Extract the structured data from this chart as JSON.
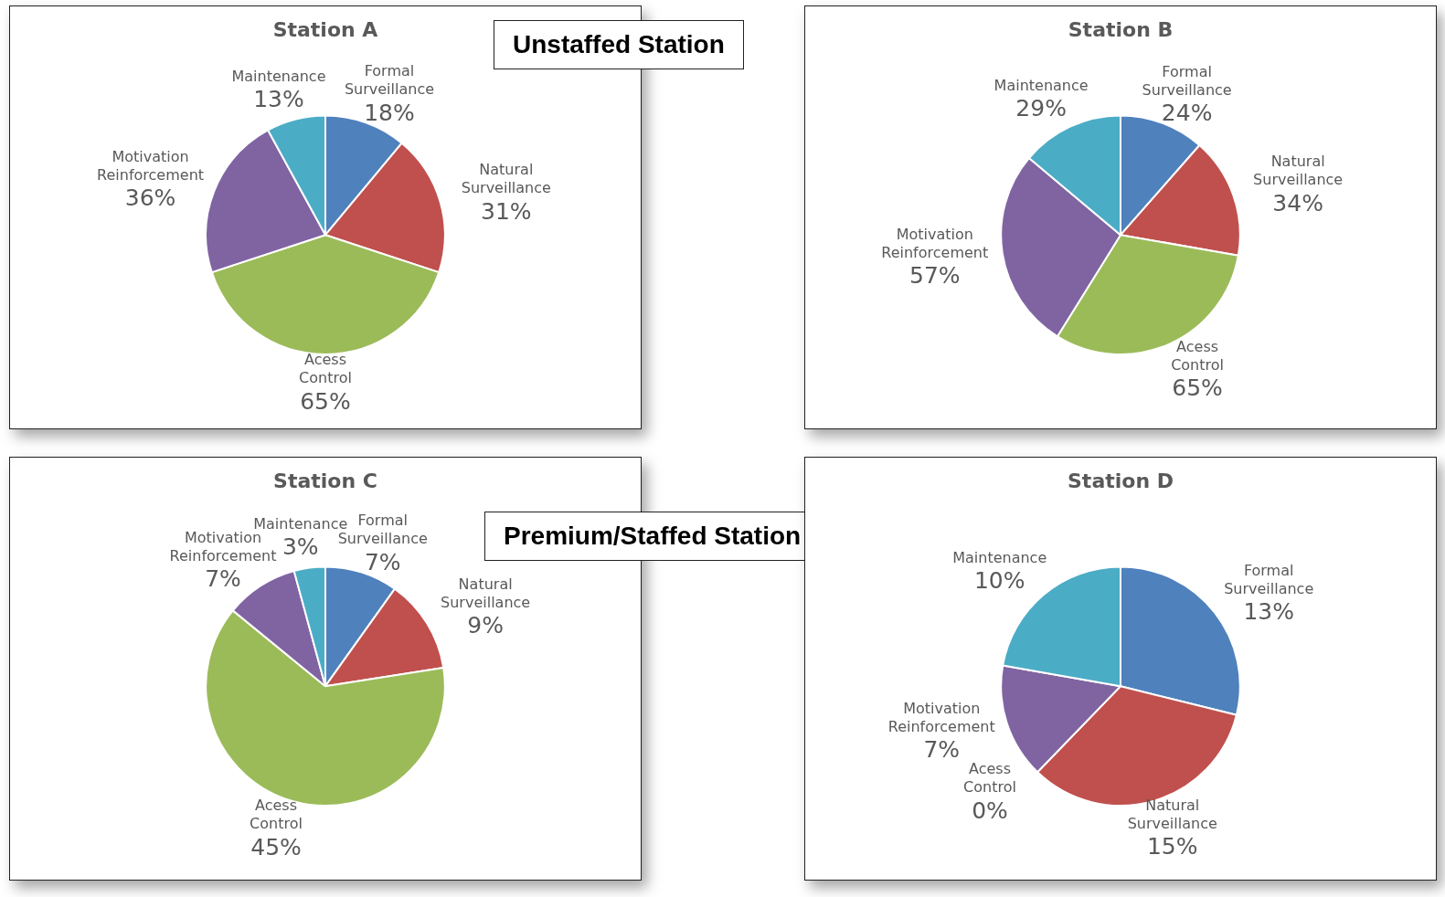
{
  "chart_data": [
    {
      "type": "pie",
      "title": "Station A",
      "categories": [
        "Formal Surveillance",
        "Natural Surveillance",
        "Acess Control",
        "Motivation Reinforcement",
        "Maintenance"
      ],
      "values": [
        18,
        31,
        65,
        36,
        13
      ],
      "value_labels": [
        "18%",
        "31%",
        "65%",
        "36%",
        "13%"
      ],
      "colors": [
        "#4f81bd",
        "#c0504d",
        "#9bbb59",
        "#8064a2",
        "#4bacc6"
      ],
      "legend": false,
      "annotations": [
        "Unstaffed Station"
      ]
    },
    {
      "type": "pie",
      "title": "Station B",
      "categories": [
        "Formal Surveillance",
        "Natural Surveillance",
        "Acess Control",
        "Motivation Reinforcement",
        "Maintenance"
      ],
      "values": [
        24,
        34,
        65,
        57,
        29
      ],
      "value_labels": [
        "24%",
        "34%",
        "65%",
        "57%",
        "29%"
      ],
      "colors": [
        "#4f81bd",
        "#c0504d",
        "#9bbb59",
        "#8064a2",
        "#4bacc6"
      ],
      "legend": false
    },
    {
      "type": "pie",
      "title": "Station C",
      "categories": [
        "Formal Surveillance",
        "Natural Surveillance",
        "Acess Control",
        "Motivation Reinforcement",
        "Maintenance"
      ],
      "values": [
        7,
        9,
        45,
        7,
        3
      ],
      "value_labels": [
        "7%",
        "9%",
        "45%",
        "7%",
        "3%"
      ],
      "colors": [
        "#4f81bd",
        "#c0504d",
        "#9bbb59",
        "#8064a2",
        "#4bacc6"
      ],
      "legend": false,
      "annotations": [
        "Premium/Staffed Station"
      ]
    },
    {
      "type": "pie",
      "title": "Station D",
      "categories": [
        "Formal Surveillance",
        "Natural Surveillance",
        "Acess Control",
        "Motivation Reinforcement",
        "Maintenance"
      ],
      "values": [
        13,
        15,
        0,
        7,
        10
      ],
      "value_labels": [
        "13%",
        "15%",
        "0%",
        "7%",
        "10%"
      ],
      "colors": [
        "#4f81bd",
        "#c0504d",
        "#9bbb59",
        "#8064a2",
        "#4bacc6"
      ],
      "legend": false
    }
  ]
}
